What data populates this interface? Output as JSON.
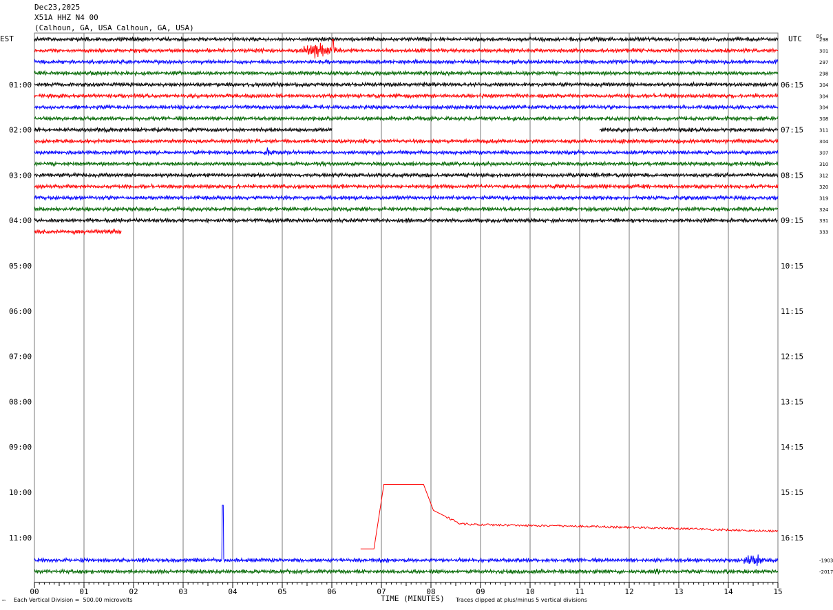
{
  "header": {
    "date": "Dec23,2025",
    "station": "X51A HHZ N4 00",
    "location": "(Calhoun, GA, USA Calhoun, GA, USA)"
  },
  "left_axis_title": "EST",
  "right_axis_title": "UTC",
  "dc_title": "DC",
  "footer": {
    "x_axis_title": "TIME (MINUTES)",
    "vertical_division": "Each Vertical Division =  500.00 microvolts",
    "clip_note": "Traces clipped at plus/minus 5 vertical divisions",
    "corner_mark": "™"
  },
  "colors": {
    "black": "#000000",
    "red": "#ff0000",
    "blue": "#0000ff",
    "green": "#006600",
    "grid": "#7a7a7a"
  },
  "chart_data": {
    "type": "line",
    "description_kind": "helicorder",
    "x_range": [
      0,
      15
    ],
    "x_ticks": [
      "00",
      "01",
      "02",
      "03",
      "04",
      "05",
      "06",
      "07",
      "08",
      "09",
      "10",
      "11",
      "12",
      "13",
      "14",
      "15"
    ],
    "trace_spacing_minutes": 15,
    "total_traces": 48,
    "est_labels": [
      {
        "trace": 4,
        "label": "01:00"
      },
      {
        "trace": 8,
        "label": "02:00"
      },
      {
        "trace": 12,
        "label": "03:00"
      },
      {
        "trace": 16,
        "label": "04:00"
      },
      {
        "trace": 20,
        "label": "05:00"
      },
      {
        "trace": 24,
        "label": "06:00"
      },
      {
        "trace": 28,
        "label": "07:00"
      },
      {
        "trace": 32,
        "label": "08:00"
      },
      {
        "trace": 36,
        "label": "09:00"
      },
      {
        "trace": 40,
        "label": "10:00"
      },
      {
        "trace": 44,
        "label": "11:00"
      }
    ],
    "utc_labels": [
      {
        "trace": 4,
        "label": "06:15"
      },
      {
        "trace": 8,
        "label": "07:15"
      },
      {
        "trace": 12,
        "label": "08:15"
      },
      {
        "trace": 16,
        "label": "09:15"
      },
      {
        "trace": 20,
        "label": "10:15"
      },
      {
        "trace": 24,
        "label": "11:15"
      },
      {
        "trace": 28,
        "label": "12:15"
      },
      {
        "trace": 32,
        "label": "13:15"
      },
      {
        "trace": 36,
        "label": "14:15"
      },
      {
        "trace": 40,
        "label": "15:15"
      },
      {
        "trace": 44,
        "label": "16:15"
      }
    ],
    "traces": [
      {
        "trace": 0,
        "color": "black",
        "dc": "298",
        "start": 0,
        "end": 15
      },
      {
        "trace": 1,
        "color": "red",
        "dc": "301",
        "start": 0,
        "end": 15,
        "burst": {
          "center": 5.75,
          "width": 0.5,
          "amp": 7
        },
        "spike": {
          "at": 6.02,
          "amp": 16
        }
      },
      {
        "trace": 2,
        "color": "blue",
        "dc": "297",
        "start": 0,
        "end": 15
      },
      {
        "trace": 3,
        "color": "green",
        "dc": "298",
        "start": 0,
        "end": 15
      },
      {
        "trace": 4,
        "color": "black",
        "dc": "304",
        "start": 0,
        "end": 15
      },
      {
        "trace": 5,
        "color": "red",
        "dc": "304",
        "start": 0,
        "end": 15
      },
      {
        "trace": 6,
        "color": "blue",
        "dc": "304",
        "start": 0,
        "end": 15
      },
      {
        "trace": 7,
        "color": "green",
        "dc": "308",
        "start": 0,
        "end": 15
      },
      {
        "trace": 8,
        "color": "black",
        "dc": "311",
        "start": 0,
        "end": 15,
        "gap": [
          6.0,
          11.4
        ]
      },
      {
        "trace": 9,
        "color": "red",
        "dc": "304",
        "start": 0,
        "end": 15
      },
      {
        "trace": 10,
        "color": "blue",
        "dc": "307",
        "start": 0,
        "end": 15,
        "burst": {
          "center": 4.7,
          "width": 0.1,
          "amp": 5
        }
      },
      {
        "trace": 11,
        "color": "green",
        "dc": "310",
        "start": 0,
        "end": 15
      },
      {
        "trace": 12,
        "color": "black",
        "dc": "312",
        "start": 0,
        "end": 15
      },
      {
        "trace": 13,
        "color": "red",
        "dc": "320",
        "start": 0,
        "end": 15
      },
      {
        "trace": 14,
        "color": "blue",
        "dc": "319",
        "start": 0,
        "end": 15
      },
      {
        "trace": 15,
        "color": "green",
        "dc": "324",
        "start": 0,
        "end": 15
      },
      {
        "trace": 16,
        "color": "black",
        "dc": "331",
        "start": 0,
        "end": 15
      },
      {
        "trace": 17,
        "color": "red",
        "dc": "333",
        "start": 0,
        "end": 1.75
      },
      {
        "trace": 45,
        "color": "red",
        "dc": "",
        "start": 6.58,
        "end": 15,
        "kind": "drift"
      },
      {
        "trace": 46,
        "color": "blue",
        "dc": "-1903",
        "start": 0,
        "end": 15,
        "spike": {
          "at": 3.8,
          "amp": 80
        },
        "burst": {
          "center": 14.5,
          "width": 0.25,
          "amp": 8
        }
      },
      {
        "trace": 47,
        "color": "green",
        "dc": "-2017",
        "start": 0,
        "end": 15,
        "burst": {
          "center": 12.55,
          "width": 0.08,
          "amp": 6
        }
      }
    ],
    "drift_trace": {
      "points": [
        [
          6.58,
          0
        ],
        [
          6.85,
          0
        ],
        [
          7.05,
          -5.7
        ],
        [
          7.85,
          -5.7
        ],
        [
          8.05,
          -3.4
        ],
        [
          8.6,
          -2.2
        ],
        [
          9.5,
          -2.1
        ],
        [
          11,
          -2.0
        ],
        [
          13,
          -1.8
        ],
        [
          15,
          -1.55
        ]
      ]
    }
  }
}
